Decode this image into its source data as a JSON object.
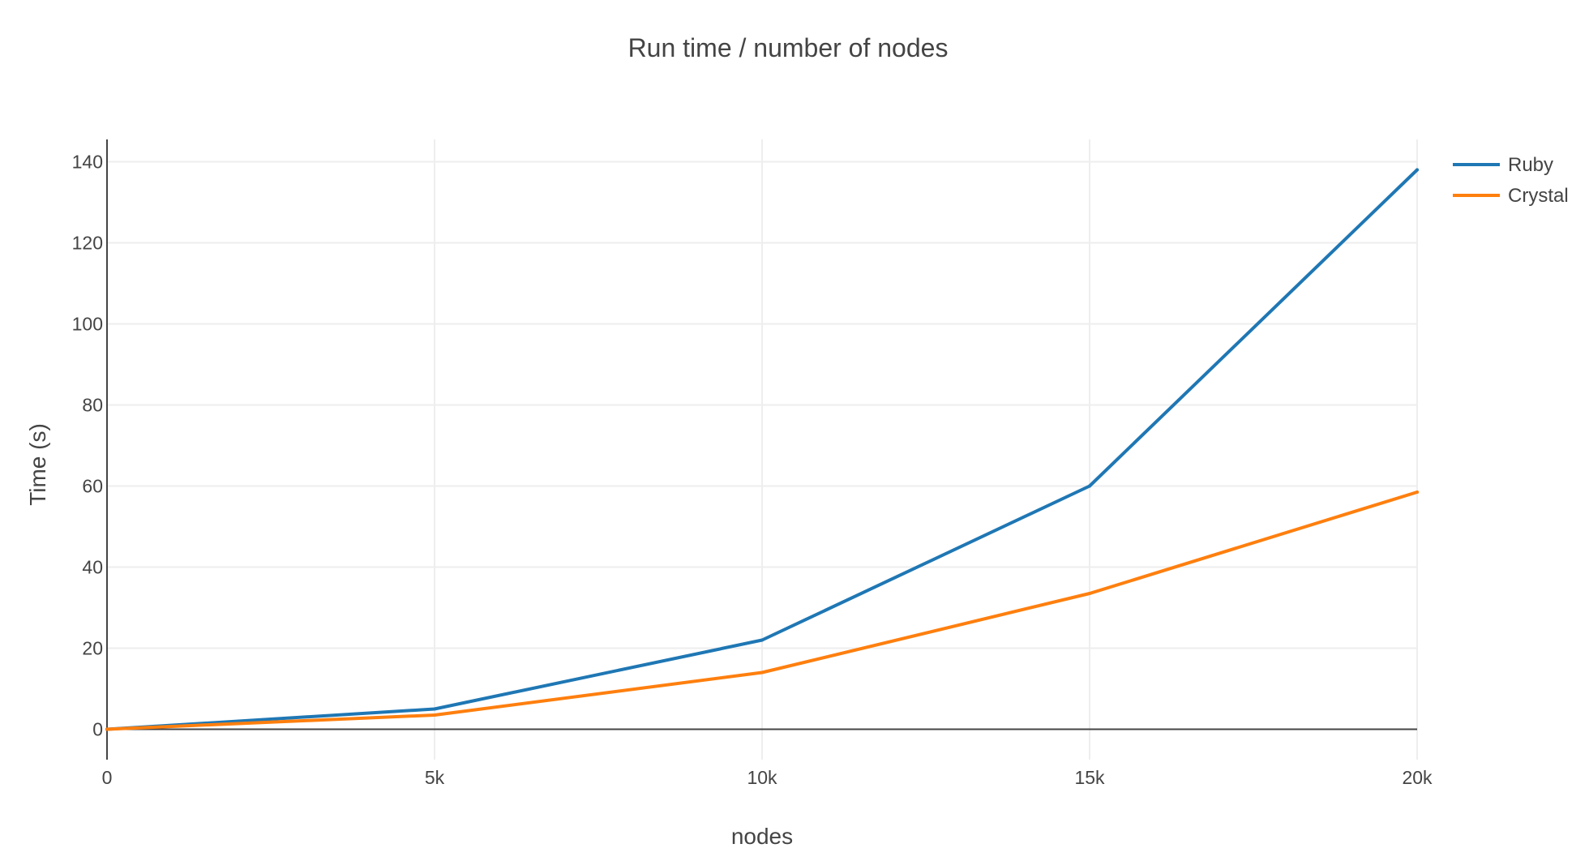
{
  "chart_data": {
    "type": "line",
    "title": "Run time / number of nodes",
    "xlabel": "nodes",
    "ylabel": "Time (s)",
    "x": [
      0,
      5000,
      10000,
      15000,
      20000
    ],
    "xticks": [
      {
        "value": 0,
        "label": "0"
      },
      {
        "value": 5000,
        "label": "5k"
      },
      {
        "value": 10000,
        "label": "10k"
      },
      {
        "value": 15000,
        "label": "15k"
      },
      {
        "value": 20000,
        "label": "20k"
      }
    ],
    "yticks": [
      {
        "value": 0,
        "label": "0"
      },
      {
        "value": 20,
        "label": "20"
      },
      {
        "value": 40,
        "label": "40"
      },
      {
        "value": 60,
        "label": "60"
      },
      {
        "value": 80,
        "label": "80"
      },
      {
        "value": 100,
        "label": "100"
      },
      {
        "value": 120,
        "label": "120"
      },
      {
        "value": 140,
        "label": "140"
      }
    ],
    "xlim": [
      0,
      20000
    ],
    "ylim": [
      -7.5,
      145.5
    ],
    "grid": true,
    "legend_position": "top-right",
    "series": [
      {
        "name": "Ruby",
        "color": "#1f77b4",
        "values": [
          0,
          5,
          22,
          60,
          138
        ]
      },
      {
        "name": "Crystal",
        "color": "#ff7f0e",
        "values": [
          0,
          3.5,
          14,
          33.5,
          58.5
        ]
      }
    ]
  }
}
